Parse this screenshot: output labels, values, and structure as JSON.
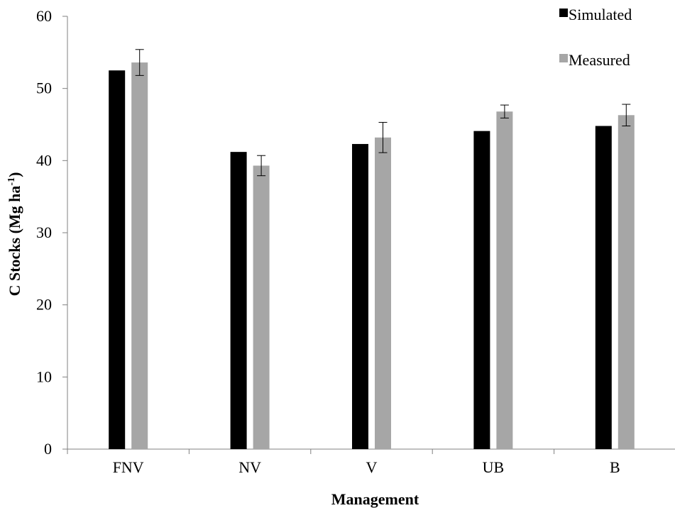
{
  "chart_data": {
    "type": "bar",
    "title": "",
    "xlabel": "Management",
    "ylabel": "C Stocks (Mg ha",
    "ylabel_sup": "-1",
    "ylabel_suffix": ")",
    "categories": [
      "FNV",
      "NV",
      "V",
      "UB",
      "B"
    ],
    "ylim": [
      0,
      60
    ],
    "yticks": [
      0,
      10,
      20,
      30,
      40,
      50,
      60
    ],
    "grid": false,
    "legend_position": "top-right",
    "series": [
      {
        "name": "Simulated",
        "color": "#000000",
        "values": [
          52.5,
          41.2,
          42.3,
          44.1,
          44.8
        ],
        "errors": null
      },
      {
        "name": "Measured",
        "color": "#a6a6a6",
        "values": [
          53.6,
          39.3,
          43.2,
          46.8,
          46.3
        ],
        "errors": [
          1.8,
          1.4,
          2.1,
          0.9,
          1.5
        ]
      }
    ]
  }
}
